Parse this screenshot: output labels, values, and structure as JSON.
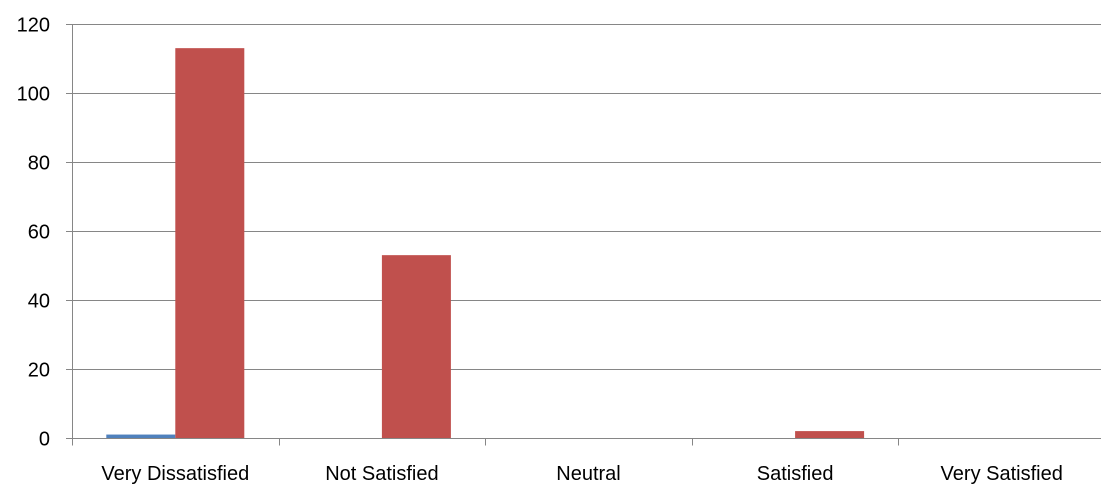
{
  "chart_data": {
    "type": "bar",
    "categories": [
      "Very Dissatisfied",
      "Not Satisfied",
      "Neutral",
      "Satisfied",
      "Very Satisfied"
    ],
    "series": [
      {
        "color": "#4F81BD",
        "values": [
          1,
          0,
          0,
          0,
          0
        ]
      },
      {
        "color": "#C0504D",
        "values": [
          113,
          53,
          0,
          2,
          0
        ]
      }
    ],
    "yticks": [
      0,
      20,
      40,
      60,
      80,
      100,
      120
    ],
    "ylim": [
      0,
      120
    ],
    "grid": true,
    "legend": "none",
    "title": "",
    "xlabel": "",
    "ylabel": ""
  }
}
